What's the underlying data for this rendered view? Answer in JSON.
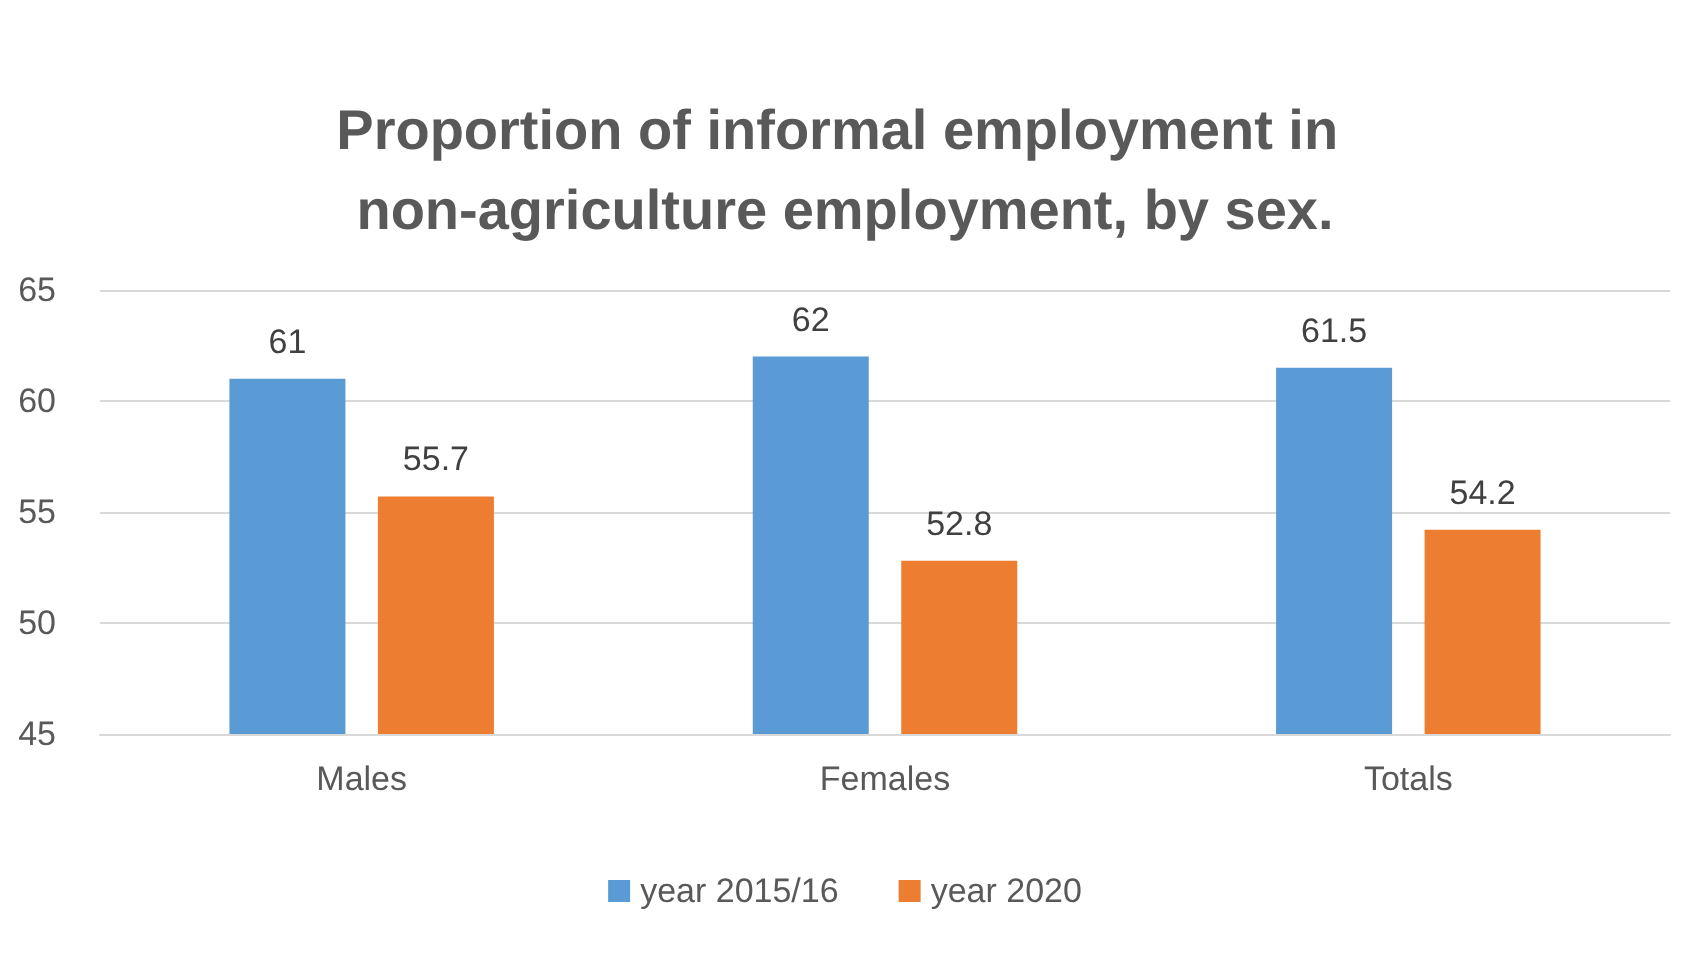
{
  "chart_data": {
    "type": "bar",
    "title": "Proportion of informal employment in non-agriculture employment, by sex.",
    "categories": [
      "Males",
      "Females",
      "Totals"
    ],
    "series": [
      {
        "name": "year 2015/16",
        "color": "#5b9bd5",
        "values": [
          61,
          62,
          61.5
        ]
      },
      {
        "name": "year 2020",
        "color": "#ed7d31",
        "values": [
          55.7,
          52.8,
          54.2
        ]
      }
    ],
    "ylim": [
      45,
      65
    ],
    "yticks": [
      45,
      50,
      55,
      60,
      65
    ],
    "grid": "y",
    "legend": "bottom",
    "data_labels": true
  }
}
